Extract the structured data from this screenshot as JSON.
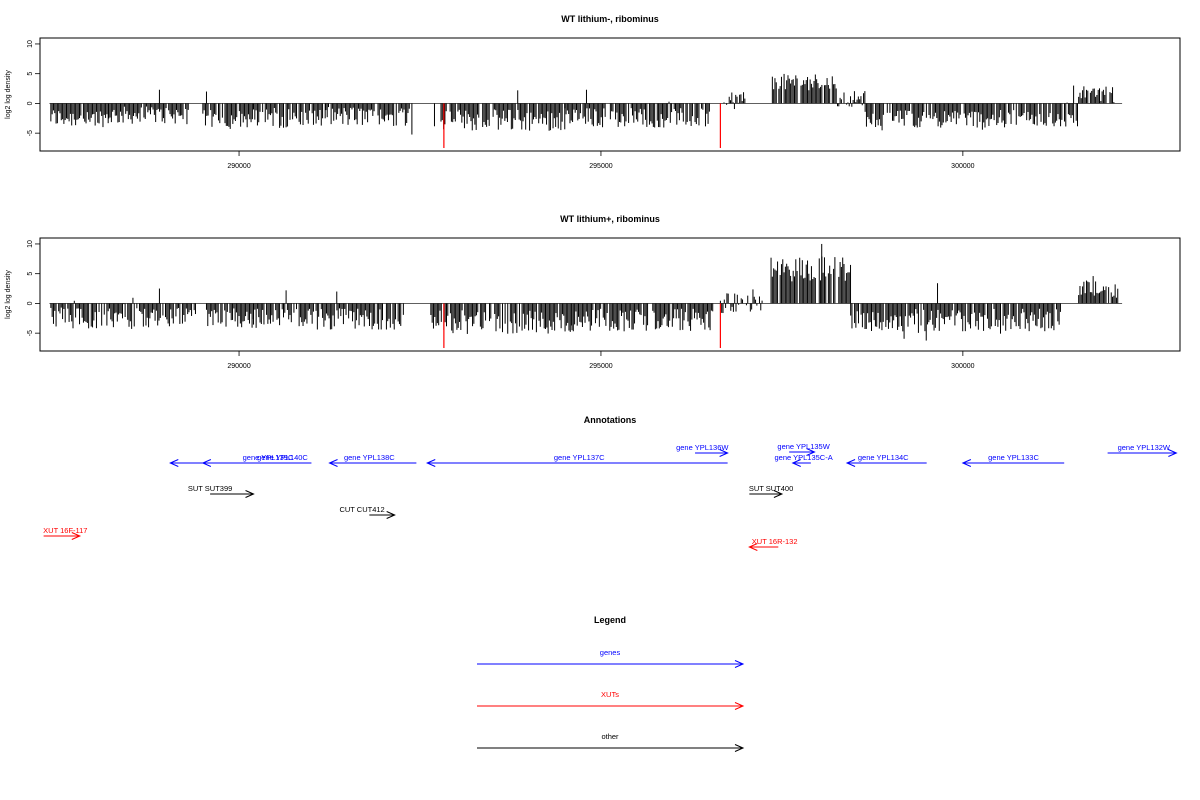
{
  "colors": {
    "gene": "#0000ff",
    "xut": "#ff0000",
    "other": "#000000",
    "axis": "#000000",
    "highlight": "#ff0000"
  },
  "chart_data": [
    {
      "type": "bar",
      "title": "WT lithium-, ribominus",
      "ylabel": "log2 log density",
      "xlim": [
        287250,
        303000
      ],
      "ylim": [
        -8,
        11
      ],
      "yticks": [
        -5,
        0,
        5,
        10
      ],
      "xticks": [
        290000,
        295000,
        300000
      ],
      "baseline_segment": [
        287380,
        302200
      ],
      "highlight_positions": [
        292830,
        296650
      ],
      "highlight_value": -7.5,
      "regions": [
        {
          "start": 287400,
          "end": 288200,
          "mean": -2.4,
          "spread": 1.6
        },
        {
          "start": 288200,
          "end": 289300,
          "mean": -2.0,
          "spread": 1.5
        },
        {
          "start": 289500,
          "end": 290200,
          "mean": -2.6,
          "spread": 1.5
        },
        {
          "start": 290200,
          "end": 291200,
          "mean": -2.5,
          "spread": 1.6
        },
        {
          "start": 291200,
          "end": 292400,
          "mean": -2.2,
          "spread": 1.7
        },
        {
          "start": 292700,
          "end": 294500,
          "mean": -2.8,
          "spread": 1.8
        },
        {
          "start": 294500,
          "end": 296500,
          "mean": -2.4,
          "spread": 1.7
        },
        {
          "start": 296700,
          "end": 297000,
          "mean": 0.6,
          "spread": 1.6
        },
        {
          "start": 297350,
          "end": 298250,
          "mean": 3.6,
          "spread": 1.4
        },
        {
          "start": 298250,
          "end": 298650,
          "mean": 0.8,
          "spread": 1.4
        },
        {
          "start": 298650,
          "end": 301600,
          "mean": -2.6,
          "spread": 1.5
        },
        {
          "start": 301600,
          "end": 302100,
          "mean": 2.0,
          "spread": 1.0
        }
      ],
      "spikes": [
        {
          "x": 288900,
          "y": 2.3
        },
        {
          "x": 289550,
          "y": 2.0
        },
        {
          "x": 293850,
          "y": 2.2
        },
        {
          "x": 294800,
          "y": 2.3
        },
        {
          "x": 301530,
          "y": 3.0
        }
      ]
    },
    {
      "type": "bar",
      "title": "WT lithium+, ribominus",
      "ylabel": "log2 log density",
      "xlim": [
        287250,
        303000
      ],
      "ylim": [
        -8,
        11
      ],
      "yticks": [
        -5,
        0,
        5,
        10
      ],
      "xticks": [
        290000,
        295000,
        300000
      ],
      "baseline_segment": [
        287380,
        302200
      ],
      "highlight_positions": [
        292830,
        296650
      ],
      "highlight_value": -7.5,
      "regions": [
        {
          "start": 287400,
          "end": 289400,
          "mean": -2.5,
          "spread": 1.8
        },
        {
          "start": 289550,
          "end": 290200,
          "mean": -2.6,
          "spread": 1.6
        },
        {
          "start": 290200,
          "end": 292300,
          "mean": -2.6,
          "spread": 1.8
        },
        {
          "start": 292650,
          "end": 294600,
          "mean": -3.2,
          "spread": 2.0
        },
        {
          "start": 294600,
          "end": 296550,
          "mean": -2.8,
          "spread": 1.9
        },
        {
          "start": 296650,
          "end": 297250,
          "mean": 0.0,
          "spread": 1.8
        },
        {
          "start": 297350,
          "end": 298450,
          "mean": 5.8,
          "spread": 2.2
        },
        {
          "start": 298450,
          "end": 301350,
          "mean": -2.8,
          "spread": 1.9
        },
        {
          "start": 301600,
          "end": 302150,
          "mean": 2.5,
          "spread": 1.2
        }
      ],
      "spikes": [
        {
          "x": 288900,
          "y": 2.5
        },
        {
          "x": 290650,
          "y": 2.2
        },
        {
          "x": 291350,
          "y": 2.0
        },
        {
          "x": 298050,
          "y": 10.0
        },
        {
          "x": 299650,
          "y": 3.4
        },
        {
          "x": 301800,
          "y": 4.6
        }
      ]
    }
  ],
  "annotations": {
    "title": "Annotations",
    "features": [
      {
        "label": "gene YPL140C",
        "type": "gene",
        "start": 290600,
        "end": 289050,
        "label_pos": 290600
      },
      {
        "label": "gene YPL139C",
        "type": "gene",
        "start": 291000,
        "end": 289500,
        "label_pos": 290400
      },
      {
        "label": "gene YPL138C",
        "type": "gene",
        "start": 292450,
        "end": 291250,
        "label_pos": 291800
      },
      {
        "label": "gene YPL137C",
        "type": "gene",
        "start": 296750,
        "end": 292600,
        "label_pos": 294700
      },
      {
        "label": "gene YPL136W",
        "type": "gene",
        "start": 296300,
        "end": 296750,
        "label_pos": 296400
      },
      {
        "label": "gene YPL135W",
        "type": "gene",
        "start": 297600,
        "end": 297950,
        "label_pos": 297800
      },
      {
        "label": "gene YPL135C-A",
        "type": "gene",
        "start": 297900,
        "end": 297650,
        "label_pos": 297800
      },
      {
        "label": "gene YPL134C",
        "type": "gene",
        "start": 299500,
        "end": 298400,
        "label_pos": 298900
      },
      {
        "label": "gene YPL133C",
        "type": "gene",
        "start": 301400,
        "end": 300000,
        "label_pos": 300700
      },
      {
        "label": "gene YPL132W",
        "type": "gene",
        "start": 302000,
        "end": 302950,
        "label_pos": 302500
      },
      {
        "label": "SUT SUT399",
        "type": "other",
        "start": 289600,
        "end": 290200,
        "label_pos": 289600
      },
      {
        "label": "SUT SUT400",
        "type": "other",
        "start": 297050,
        "end": 297500,
        "label_pos": 297350
      },
      {
        "label": "CUT CUT412",
        "type": "other",
        "start": 291800,
        "end": 292150,
        "label_pos": 291700
      },
      {
        "label": "XUT 16F-117",
        "type": "xut",
        "start": 287300,
        "end": 287800,
        "label_pos": 287600
      },
      {
        "label": "XUT 16R-132",
        "type": "xut",
        "start": 297450,
        "end": 297050,
        "label_pos": 297400
      }
    ]
  },
  "legend": {
    "title": "Legend",
    "items": [
      {
        "label": "genes",
        "type": "gene"
      },
      {
        "label": "XUTs",
        "type": "xut"
      },
      {
        "label": "other",
        "type": "other"
      }
    ]
  }
}
